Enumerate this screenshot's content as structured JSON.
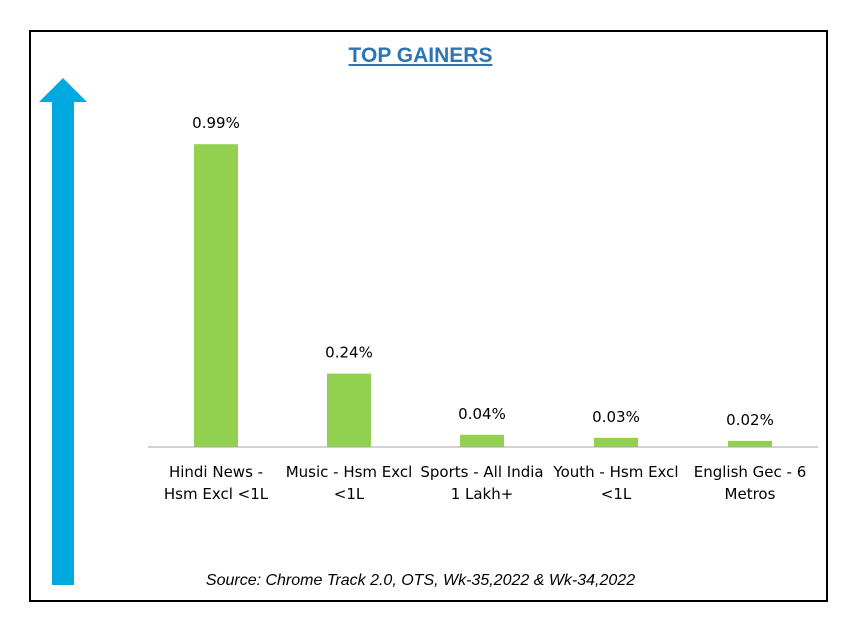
{
  "chart_data": {
    "type": "bar",
    "title": "TOP GAINERS",
    "categories": [
      [
        "Hindi News -",
        "Hsm Excl <1L"
      ],
      [
        "Music - Hsm Excl",
        "<1L"
      ],
      [
        "Sports - All India",
        "1 Lakh+"
      ],
      [
        "Youth - Hsm Excl",
        "<1L"
      ],
      [
        "English Gec - 6",
        "Metros"
      ]
    ],
    "values": [
      0.99,
      0.24,
      0.04,
      0.03,
      0.02
    ],
    "data_labels": [
      "0.99%",
      "0.24%",
      "0.04%",
      "0.03%",
      "0.02%"
    ],
    "ylim": [
      0,
      1.2
    ],
    "grid": false,
    "legend": "none"
  },
  "source": "Source: Chrome Track 2.0, OTS, Wk-35,2022 & Wk-34,2022",
  "colors": {
    "bar": "#92d050",
    "arrow": "#00a9e0",
    "title": "#2e75b6",
    "axis": "#a6a6a6"
  },
  "decor": {
    "arrow": "up-arrow-icon"
  }
}
